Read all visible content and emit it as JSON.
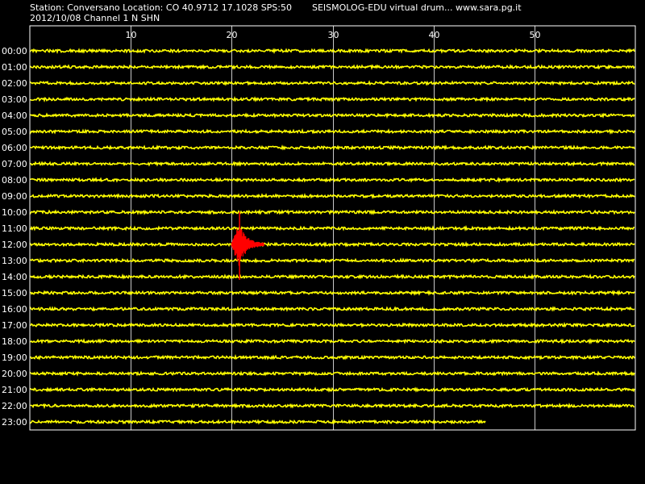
{
  "header": {
    "station_info": "Station: Conversano Location: CO 40.9712 17.1028 SPS:50",
    "date_channel": "2012/10/08  Channel 1 N SHN",
    "app_credit": "SEISMOLOG-EDU virtual drum... www.sara.pg.it"
  },
  "colors": {
    "background": "#000000",
    "frame": "#ffffff",
    "grid": "#c8c8c8",
    "trace": "#ffff00",
    "event": "#ff0000",
    "text": "#ffffff"
  },
  "chart_data": {
    "type": "line",
    "x_unit": "minutes",
    "xlim": [
      0,
      60
    ],
    "x_ticks": [
      10,
      20,
      30,
      40,
      50
    ],
    "rows": [
      "00:00",
      "01:00",
      "02:00",
      "03:00",
      "04:00",
      "05:00",
      "06:00",
      "07:00",
      "08:00",
      "09:00",
      "10:00",
      "11:00",
      "12:00",
      "13:00",
      "14:00",
      "15:00",
      "16:00",
      "17:00",
      "18:00",
      "19:00",
      "20:00",
      "21:00",
      "22:00",
      "23:00"
    ],
    "last_row_end_minute": 45.2,
    "event": {
      "row": "12:00",
      "start_minute": 20.0,
      "peak_minute": 20.7,
      "end_minute": 23.2,
      "color": "red"
    },
    "grid": true
  }
}
